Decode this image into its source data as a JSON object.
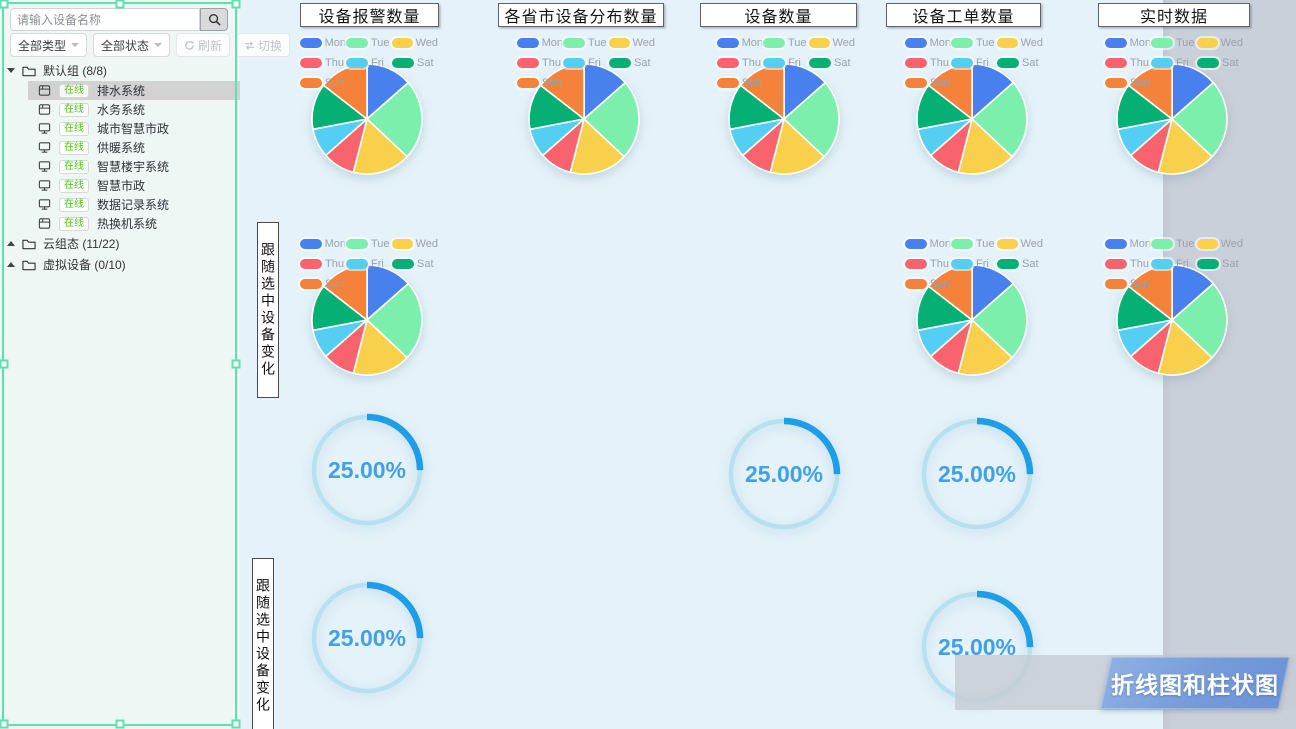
{
  "sidebar": {
    "search": {
      "placeholder": "请输入设备名称"
    },
    "toolbar": {
      "type_filter": "全部类型",
      "status_filter": "全部状态",
      "refresh": "刷新",
      "switch": "切换"
    },
    "tree": {
      "groups": [
        {
          "label": "默认组 (8/8)",
          "expanded": true,
          "items": [
            {
              "icon": "device-icon",
              "status": "在线",
              "name": "排水系统",
              "selected": true
            },
            {
              "icon": "device-icon",
              "status": "在线",
              "name": "水务系统",
              "selected": false
            },
            {
              "icon": "monitor-icon",
              "status": "在线",
              "name": "城市智慧市政",
              "selected": false
            },
            {
              "icon": "monitor-icon",
              "status": "在线",
              "name": "供暖系统",
              "selected": false
            },
            {
              "icon": "monitor-icon",
              "status": "在线",
              "name": "智慧楼宇系统",
              "selected": false
            },
            {
              "icon": "monitor-icon",
              "status": "在线",
              "name": "智慧市政",
              "selected": false
            },
            {
              "icon": "monitor-icon",
              "status": "在线",
              "name": "数据记录系统",
              "selected": false
            },
            {
              "icon": "device-icon",
              "status": "在线",
              "name": "热换机系统",
              "selected": false
            }
          ]
        },
        {
          "label": "云组态 (11/22)",
          "expanded": false,
          "items": []
        },
        {
          "label": "虚拟设备 (0/10)",
          "expanded": false,
          "items": []
        }
      ]
    },
    "status_color": "#52c41a"
  },
  "titles": [
    "设备报警数量",
    "各省市设备分布数量",
    "设备数量",
    "设备工单数量",
    "实时数据"
  ],
  "vertical_label": "跟随选中设备变化",
  "banner": "折线图和柱状图",
  "chart_data": {
    "pie": {
      "type": "pie",
      "labels": [
        "Mon",
        "Tue",
        "Wed",
        "Thu",
        "Fri",
        "Sat",
        "Sun"
      ],
      "values": [
        13.5,
        23.5,
        17,
        9.5,
        8.5,
        13.5,
        14.5
      ],
      "colors": [
        "#4880ee",
        "#7cefad",
        "#f9d04b",
        "#f9636e",
        "#54cef2",
        "#06af73",
        "#f5823a"
      ],
      "legend_position": "top-left",
      "start_angle_deg": -90
    },
    "gauge": {
      "type": "gauge",
      "percent": 25,
      "label": "25.00%",
      "arc_color": "#1e9de9",
      "track_color": "#b7e1ed",
      "text_color": "#41a0e8"
    }
  }
}
